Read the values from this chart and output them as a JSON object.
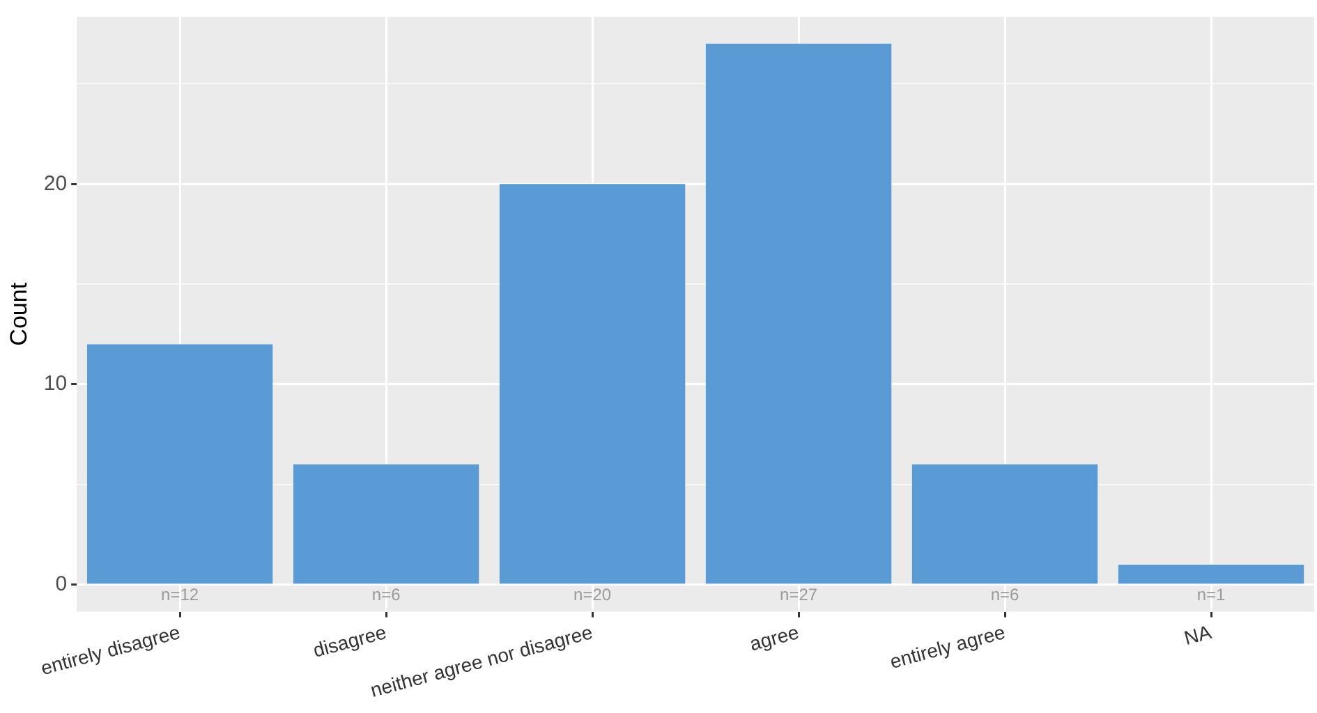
{
  "chart_data": {
    "type": "bar",
    "ylabel": "Count",
    "categories": [
      "entirely disagree",
      "disagree",
      "neither agree nor disagree",
      "agree",
      "entirely agree",
      "NA"
    ],
    "values": [
      12,
      6,
      20,
      27,
      6,
      1
    ],
    "value_labels": [
      "n=12",
      "n=6",
      "n=20",
      "n=27",
      "n=6",
      "n=1"
    ],
    "color": "#5b9bd5",
    "ylim": [
      -1.35,
      28.35
    ],
    "yticks": [
      0,
      {
        "value": 5,
        "label": null
      },
      10,
      {
        "value": 15,
        "label": null
      },
      20,
      {
        "value": 25,
        "label": null
      }
    ],
    "grid": true,
    "legend": false
  }
}
